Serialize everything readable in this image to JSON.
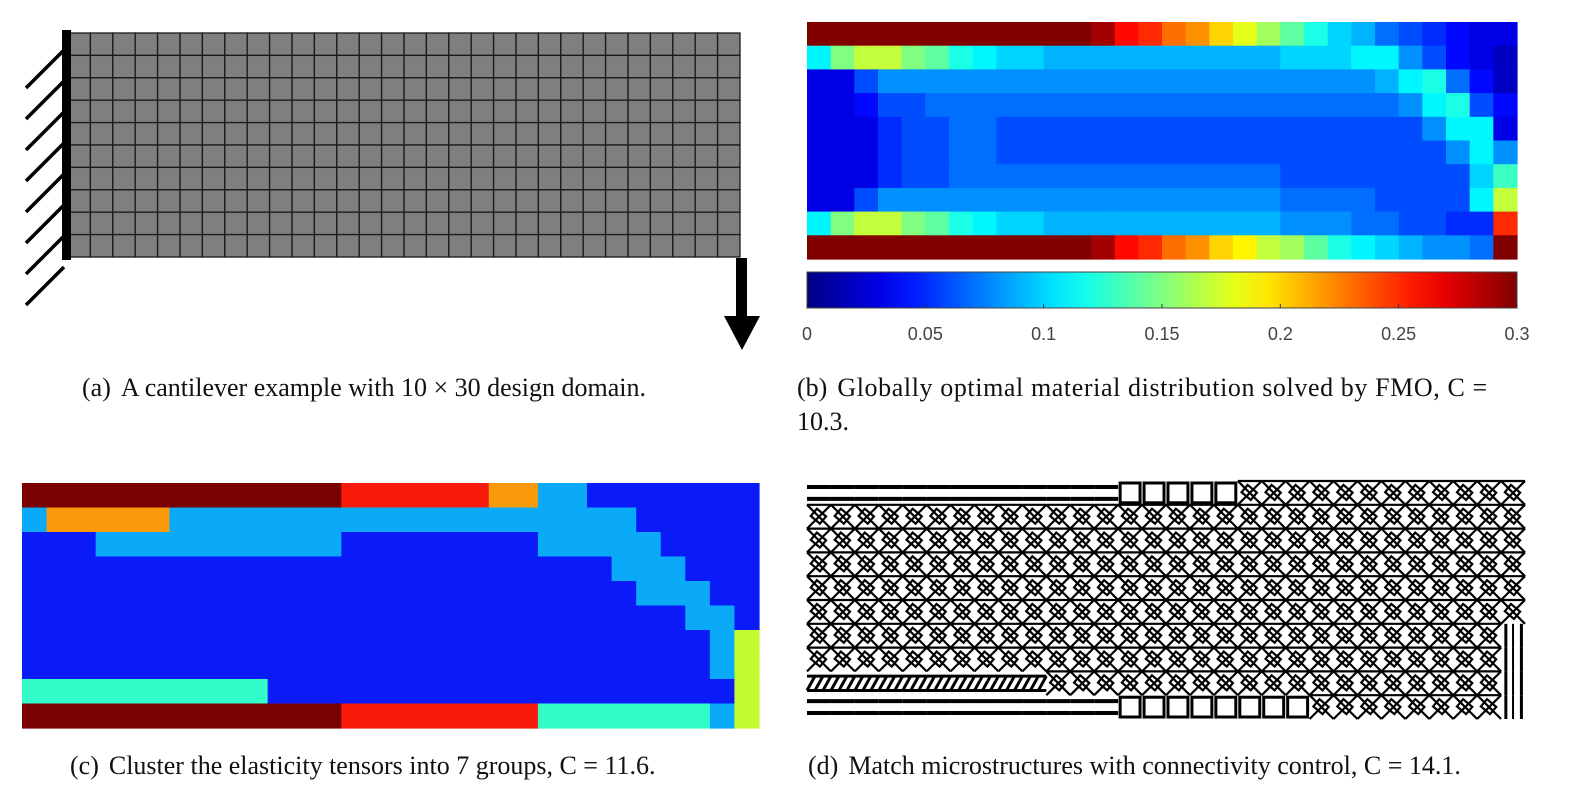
{
  "captions": {
    "a": {
      "label": "(a)",
      "text": "A cantilever example with 10 × 30 design domain."
    },
    "b": {
      "label": "(b)",
      "text_line1": "Globally optimal material distribution solved by FMO, C =",
      "text_line2": "10.3."
    },
    "c": {
      "label": "(c)",
      "text": "Cluster the elasticity tensors into 7 groups, C = 11.6."
    },
    "d": {
      "label": "(d)",
      "text": "Match microstructures with connectivity control, C = 14.1."
    }
  },
  "cantilever": {
    "rows": 10,
    "cols": 30,
    "cell_color": "#7f7f7f",
    "line_color": "#1a1a1a",
    "hatch_count": 8
  },
  "chart_data": [
    {
      "type": "heatmap",
      "title": "",
      "rows": 10,
      "cols": 30,
      "colormap": "jet",
      "colorbar": {
        "min": 0,
        "max": 0.3,
        "ticks": [
          "0",
          "0.05",
          "0.1",
          "0.15",
          "0.2",
          "0.25",
          "0.3"
        ]
      },
      "values": [
        [
          0.3,
          0.3,
          0.3,
          0.3,
          0.3,
          0.3,
          0.3,
          0.3,
          0.3,
          0.3,
          0.3,
          0.3,
          0.29,
          0.26,
          0.25,
          0.23,
          0.22,
          0.2,
          0.18,
          0.16,
          0.14,
          0.12,
          0.1,
          0.09,
          0.07,
          0.06,
          0.05,
          0.04,
          0.03,
          0.03
        ],
        [
          0.11,
          0.15,
          0.17,
          0.17,
          0.15,
          0.14,
          0.12,
          0.11,
          0.1,
          0.1,
          0.09,
          0.09,
          0.09,
          0.09,
          0.09,
          0.09,
          0.09,
          0.09,
          0.09,
          0.09,
          0.1,
          0.1,
          0.1,
          0.11,
          0.11,
          0.08,
          0.06,
          0.04,
          0.03,
          0.02
        ],
        [
          0.03,
          0.03,
          0.06,
          0.08,
          0.08,
          0.08,
          0.08,
          0.08,
          0.08,
          0.08,
          0.08,
          0.08,
          0.08,
          0.08,
          0.08,
          0.08,
          0.08,
          0.08,
          0.08,
          0.08,
          0.08,
          0.08,
          0.08,
          0.08,
          0.09,
          0.11,
          0.12,
          0.07,
          0.04,
          0.02
        ],
        [
          0.03,
          0.03,
          0.04,
          0.06,
          0.06,
          0.07,
          0.07,
          0.07,
          0.07,
          0.07,
          0.07,
          0.07,
          0.07,
          0.07,
          0.07,
          0.07,
          0.07,
          0.07,
          0.07,
          0.07,
          0.07,
          0.07,
          0.07,
          0.07,
          0.07,
          0.08,
          0.11,
          0.12,
          0.06,
          0.04
        ],
        [
          0.03,
          0.03,
          0.03,
          0.05,
          0.06,
          0.06,
          0.07,
          0.07,
          0.06,
          0.06,
          0.06,
          0.06,
          0.06,
          0.06,
          0.06,
          0.06,
          0.06,
          0.06,
          0.06,
          0.06,
          0.06,
          0.06,
          0.06,
          0.06,
          0.06,
          0.06,
          0.08,
          0.11,
          0.11,
          0.03
        ],
        [
          0.03,
          0.03,
          0.03,
          0.05,
          0.06,
          0.06,
          0.07,
          0.07,
          0.06,
          0.06,
          0.06,
          0.06,
          0.06,
          0.06,
          0.06,
          0.06,
          0.06,
          0.06,
          0.06,
          0.06,
          0.06,
          0.06,
          0.06,
          0.06,
          0.06,
          0.06,
          0.06,
          0.08,
          0.11,
          0.08
        ],
        [
          0.03,
          0.03,
          0.03,
          0.05,
          0.06,
          0.06,
          0.07,
          0.07,
          0.07,
          0.07,
          0.07,
          0.07,
          0.07,
          0.07,
          0.07,
          0.07,
          0.07,
          0.07,
          0.07,
          0.07,
          0.06,
          0.06,
          0.06,
          0.06,
          0.06,
          0.06,
          0.06,
          0.06,
          0.1,
          0.13
        ],
        [
          0.03,
          0.03,
          0.06,
          0.08,
          0.08,
          0.08,
          0.08,
          0.08,
          0.08,
          0.08,
          0.08,
          0.08,
          0.08,
          0.08,
          0.08,
          0.08,
          0.08,
          0.08,
          0.08,
          0.08,
          0.07,
          0.07,
          0.07,
          0.07,
          0.06,
          0.06,
          0.06,
          0.06,
          0.11,
          0.17
        ],
        [
          0.11,
          0.15,
          0.17,
          0.17,
          0.15,
          0.14,
          0.12,
          0.11,
          0.1,
          0.1,
          0.09,
          0.09,
          0.09,
          0.09,
          0.09,
          0.09,
          0.09,
          0.09,
          0.09,
          0.09,
          0.08,
          0.08,
          0.08,
          0.07,
          0.07,
          0.06,
          0.06,
          0.05,
          0.05,
          0.25
        ],
        [
          0.3,
          0.3,
          0.3,
          0.3,
          0.3,
          0.3,
          0.3,
          0.3,
          0.3,
          0.3,
          0.3,
          0.3,
          0.29,
          0.26,
          0.25,
          0.23,
          0.22,
          0.2,
          0.19,
          0.17,
          0.16,
          0.14,
          0.12,
          0.11,
          0.1,
          0.09,
          0.08,
          0.08,
          0.07,
          0.3
        ]
      ]
    },
    {
      "type": "heatmap",
      "title": "",
      "rows": 10,
      "cols": 30,
      "groups": {
        "1": "#7b0000",
        "2": "#f81a0a",
        "3": "#fb9b0c",
        "4": "#0aaaf8",
        "5": "#0a1bf8",
        "6": "#32fcc8",
        "7": "#c4fc32"
      },
      "values": [
        [
          1,
          1,
          1,
          1,
          1,
          1,
          1,
          1,
          1,
          1,
          1,
          1,
          1,
          2,
          2,
          2,
          2,
          2,
          2,
          3,
          3,
          4,
          4,
          5,
          5,
          5,
          5,
          5,
          5,
          5
        ],
        [
          4,
          3,
          3,
          3,
          3,
          3,
          4,
          4,
          4,
          4,
          4,
          4,
          4,
          4,
          4,
          4,
          4,
          4,
          4,
          4,
          4,
          4,
          4,
          4,
          4,
          5,
          5,
          5,
          5,
          5
        ],
        [
          5,
          5,
          5,
          4,
          4,
          4,
          4,
          4,
          4,
          4,
          4,
          4,
          4,
          5,
          5,
          5,
          5,
          5,
          5,
          5,
          5,
          4,
          4,
          4,
          4,
          4,
          5,
          5,
          5,
          5
        ],
        [
          5,
          5,
          5,
          5,
          5,
          5,
          5,
          5,
          5,
          5,
          5,
          5,
          5,
          5,
          5,
          5,
          5,
          5,
          5,
          5,
          5,
          5,
          5,
          5,
          4,
          4,
          4,
          5,
          5,
          5
        ],
        [
          5,
          5,
          5,
          5,
          5,
          5,
          5,
          5,
          5,
          5,
          5,
          5,
          5,
          5,
          5,
          5,
          5,
          5,
          5,
          5,
          5,
          5,
          5,
          5,
          5,
          4,
          4,
          4,
          5,
          5
        ],
        [
          5,
          5,
          5,
          5,
          5,
          5,
          5,
          5,
          5,
          5,
          5,
          5,
          5,
          5,
          5,
          5,
          5,
          5,
          5,
          5,
          5,
          5,
          5,
          5,
          5,
          5,
          5,
          4,
          4,
          5
        ],
        [
          5,
          5,
          5,
          5,
          5,
          5,
          5,
          5,
          5,
          5,
          5,
          5,
          5,
          5,
          5,
          5,
          5,
          5,
          5,
          5,
          5,
          5,
          5,
          5,
          5,
          5,
          5,
          5,
          4,
          7
        ],
        [
          5,
          5,
          5,
          5,
          5,
          5,
          5,
          5,
          5,
          5,
          5,
          5,
          5,
          5,
          5,
          5,
          5,
          5,
          5,
          5,
          5,
          5,
          5,
          5,
          5,
          5,
          5,
          5,
          4,
          7
        ],
        [
          6,
          6,
          6,
          6,
          6,
          6,
          6,
          6,
          6,
          6,
          5,
          5,
          5,
          5,
          5,
          5,
          5,
          5,
          5,
          5,
          5,
          5,
          5,
          5,
          5,
          5,
          5,
          5,
          5,
          7
        ],
        [
          1,
          1,
          1,
          1,
          1,
          1,
          1,
          1,
          1,
          1,
          1,
          1,
          1,
          2,
          2,
          2,
          2,
          2,
          2,
          2,
          2,
          6,
          6,
          6,
          6,
          6,
          6,
          6,
          4,
          7
        ]
      ]
    }
  ],
  "microstructure": {
    "rows": 10,
    "cols": 30,
    "types": [
      [
        "bar",
        "bar",
        "bar",
        "bar",
        "bar",
        "bar",
        "bar",
        "bar",
        "bar",
        "bar",
        "bar",
        "bar",
        "bar",
        "block",
        "block",
        "block",
        "block",
        "block",
        "lattice",
        "lattice",
        "lattice",
        "lattice",
        "lattice",
        "lattice",
        "lattice",
        "lattice",
        "lattice",
        "lattice",
        "lattice",
        "lattice"
      ],
      [
        "lattice",
        "lattice",
        "lattice",
        "lattice",
        "lattice",
        "lattice",
        "lattice",
        "lattice",
        "lattice",
        "lattice",
        "lattice",
        "lattice",
        "lattice",
        "lattice",
        "lattice",
        "lattice",
        "lattice",
        "lattice",
        "lattice",
        "lattice",
        "lattice",
        "lattice",
        "lattice",
        "lattice",
        "lattice",
        "lattice",
        "lattice",
        "lattice",
        "lattice",
        "lattice"
      ],
      [
        "lattice",
        "lattice",
        "lattice",
        "lattice",
        "lattice",
        "lattice",
        "lattice",
        "lattice",
        "lattice",
        "lattice",
        "lattice",
        "lattice",
        "lattice",
        "lattice",
        "lattice",
        "lattice",
        "lattice",
        "lattice",
        "lattice",
        "lattice",
        "lattice",
        "lattice",
        "lattice",
        "lattice",
        "lattice",
        "lattice",
        "lattice",
        "lattice",
        "lattice",
        "lattice"
      ],
      [
        "lattice",
        "lattice",
        "lattice",
        "lattice",
        "lattice",
        "lattice",
        "lattice",
        "lattice",
        "lattice",
        "lattice",
        "lattice",
        "lattice",
        "lattice",
        "lattice",
        "lattice",
        "lattice",
        "lattice",
        "lattice",
        "lattice",
        "lattice",
        "lattice",
        "lattice",
        "lattice",
        "lattice",
        "lattice",
        "lattice",
        "lattice",
        "lattice",
        "lattice",
        "lattice"
      ],
      [
        "lattice",
        "lattice",
        "lattice",
        "lattice",
        "lattice",
        "lattice",
        "lattice",
        "lattice",
        "lattice",
        "lattice",
        "lattice",
        "lattice",
        "lattice",
        "lattice",
        "lattice",
        "lattice",
        "lattice",
        "lattice",
        "lattice",
        "lattice",
        "lattice",
        "lattice",
        "lattice",
        "lattice",
        "lattice",
        "lattice",
        "lattice",
        "lattice",
        "lattice",
        "lattice"
      ],
      [
        "lattice",
        "lattice",
        "lattice",
        "lattice",
        "lattice",
        "lattice",
        "lattice",
        "lattice",
        "lattice",
        "lattice",
        "lattice",
        "lattice",
        "lattice",
        "lattice",
        "lattice",
        "lattice",
        "lattice",
        "lattice",
        "lattice",
        "lattice",
        "lattice",
        "lattice",
        "lattice",
        "lattice",
        "lattice",
        "lattice",
        "lattice",
        "lattice",
        "lattice",
        "lattice"
      ],
      [
        "lattice",
        "lattice",
        "lattice",
        "lattice",
        "lattice",
        "lattice",
        "lattice",
        "lattice",
        "lattice",
        "lattice",
        "lattice",
        "lattice",
        "lattice",
        "lattice",
        "lattice",
        "lattice",
        "lattice",
        "lattice",
        "lattice",
        "lattice",
        "lattice",
        "lattice",
        "lattice",
        "lattice",
        "lattice",
        "lattice",
        "lattice",
        "lattice",
        "lattice",
        "vert"
      ],
      [
        "lattice",
        "lattice",
        "lattice",
        "lattice",
        "lattice",
        "lattice",
        "lattice",
        "lattice",
        "lattice",
        "lattice",
        "lattice",
        "lattice",
        "lattice",
        "lattice",
        "lattice",
        "lattice",
        "lattice",
        "lattice",
        "lattice",
        "lattice",
        "lattice",
        "lattice",
        "lattice",
        "lattice",
        "lattice",
        "lattice",
        "lattice",
        "lattice",
        "lattice",
        "vert"
      ],
      [
        "diag",
        "diag",
        "diag",
        "diag",
        "diag",
        "diag",
        "diag",
        "diag",
        "diag",
        "diag",
        "lattice",
        "lattice",
        "lattice",
        "lattice",
        "lattice",
        "lattice",
        "lattice",
        "lattice",
        "lattice",
        "lattice",
        "lattice",
        "lattice",
        "lattice",
        "lattice",
        "lattice",
        "lattice",
        "lattice",
        "lattice",
        "lattice",
        "vert"
      ],
      [
        "bar",
        "bar",
        "bar",
        "bar",
        "bar",
        "bar",
        "bar",
        "bar",
        "bar",
        "bar",
        "bar",
        "bar",
        "bar",
        "block",
        "block",
        "block",
        "block",
        "block",
        "block",
        "block",
        "block",
        "lattice",
        "lattice",
        "lattice",
        "lattice",
        "lattice",
        "lattice",
        "lattice",
        "lattice",
        "vert"
      ]
    ]
  }
}
